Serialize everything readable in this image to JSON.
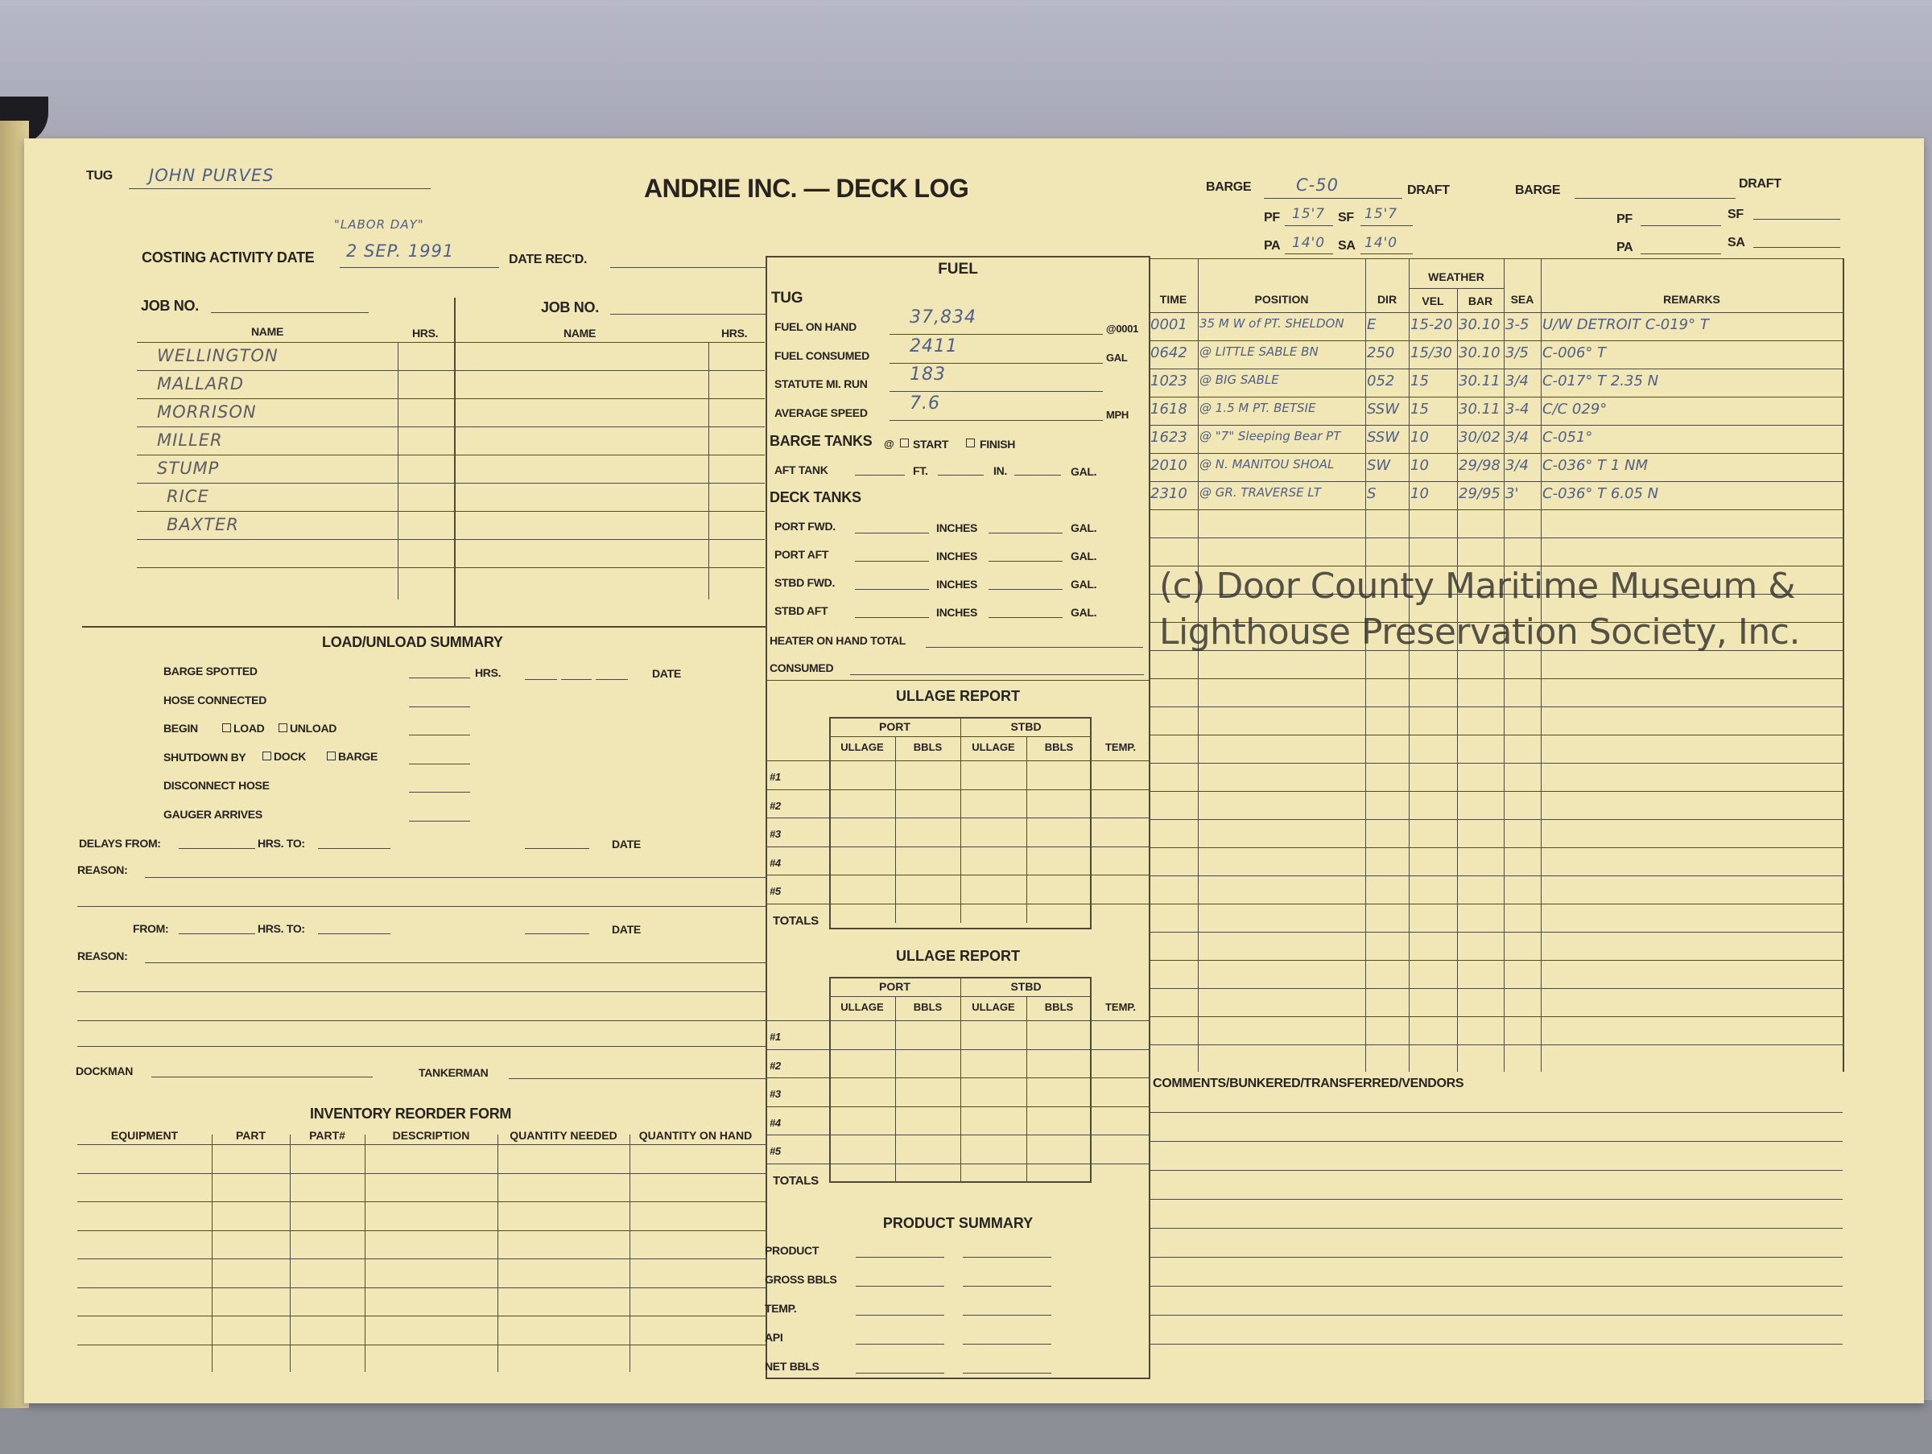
{
  "form": {
    "title": "ANDRIE INC. — DECK LOG",
    "watermark": "(c) Door County Maritime Museum & Lighthouse Preservation Society, Inc."
  },
  "header": {
    "tug_label": "TUG",
    "tug_value": "JOHN PURVES",
    "costing_label": "COSTING ACTIVITY DATE",
    "costing_note": "\"LABOR DAY\"",
    "costing_value": "2 SEP. 1991",
    "date_recd_label": "DATE REC'D.",
    "barge1": {
      "barge_label": "BARGE",
      "barge_value": "C-50",
      "draft_label": "DRAFT",
      "pf_label": "PF",
      "pf": "15'7",
      "sf_label": "SF",
      "sf": "15'7",
      "pa_label": "PA",
      "pa": "14'0",
      "sa_label": "SA",
      "sa": "14'0"
    },
    "barge2": {
      "barge_label": "BARGE",
      "draft_label": "DRAFT",
      "pf_label": "PF",
      "sf_label": "SF",
      "pa_label": "PA",
      "sa_label": "SA"
    }
  },
  "crew": {
    "job_label": "JOB NO.",
    "name_header": "NAME",
    "hrs_header": "HRS.",
    "names": [
      "WELLINGTON",
      "MALLARD",
      "MORRISON",
      "MILLER",
      "STUMP",
      "RICE",
      "BAXTER"
    ]
  },
  "load_unload": {
    "title": "LOAD/UNLOAD SUMMARY",
    "barge_spotted": "BARGE SPOTTED",
    "hrs": "HRS.",
    "date": "DATE",
    "hose_connected": "HOSE CONNECTED",
    "begin": "BEGIN",
    "load": "LOAD",
    "unload": "UNLOAD",
    "shutdown_by": "SHUTDOWN BY",
    "dock": "DOCK",
    "barge": "BARGE",
    "disconnect_hose": "DISCONNECT HOSE",
    "gauger_arrives": "GAUGER ARRIVES",
    "delays_from": "DELAYS FROM:",
    "hrs_to": "HRS. TO:",
    "reason": "REASON:",
    "from": "FROM:",
    "dockman": "DOCKMAN",
    "tankerman": "TANKERMAN"
  },
  "inventory": {
    "title": "INVENTORY REORDER FORM",
    "columns": [
      "EQUIPMENT",
      "PART",
      "PART#",
      "DESCRIPTION",
      "QUANTITY NEEDED",
      "QUANTITY ON HAND"
    ]
  },
  "fuel": {
    "title": "FUEL",
    "tug": "TUG",
    "fuel_on_hand_label": "FUEL ON HAND",
    "fuel_on_hand": "37,834",
    "fuel_on_hand_unit": "@0001",
    "fuel_consumed_label": "FUEL CONSUMED",
    "fuel_consumed": "2411",
    "fuel_consumed_unit": "GAL",
    "statute_label": "STATUTE MI. RUN",
    "statute": "183",
    "avg_speed_label": "AVERAGE SPEED",
    "avg_speed": "7.6",
    "avg_speed_unit": "MPH",
    "barge_tanks": "BARGE TANKS",
    "at": "@",
    "start": "START",
    "finish": "FINISH",
    "aft_tank": "AFT TANK",
    "ft": "FT.",
    "in": "IN.",
    "gal": "GAL.",
    "deck_tanks": "DECK TANKS",
    "inches": "INCHES",
    "deck_rows": [
      "PORT FWD.",
      "PORT AFT",
      "STBD FWD.",
      "STBD AFT"
    ],
    "heater": "HEATER ON HAND TOTAL",
    "consumed": "CONSUMED"
  },
  "ullage": {
    "title": "ULLAGE REPORT",
    "port": "PORT",
    "stbd": "STBD",
    "cols": [
      "ULLAGE",
      "BBLS",
      "ULLAGE",
      "BBLS",
      "TEMP."
    ],
    "rows": [
      "#1",
      "#2",
      "#3",
      "#4",
      "#5",
      "TOTALS"
    ]
  },
  "product": {
    "title": "PRODUCT SUMMARY",
    "rows": [
      "PRODUCT",
      "GROSS BBLS",
      "TEMP.",
      "API",
      "NET BBLS"
    ]
  },
  "log": {
    "weather": "WEATHER",
    "columns": [
      "TIME",
      "POSITION",
      "DIR",
      "VEL",
      "BAR",
      "SEA",
      "REMARKS"
    ],
    "entries": [
      [
        "0001",
        "35 M W of PT. SHELDON",
        "E",
        "15-20",
        "30.10",
        "3-5",
        "U/W DETROIT    C-019° T"
      ],
      [
        "0642",
        "@ LITTLE SABLE BN",
        "250",
        "15/30",
        "30.10",
        "3/5",
        "C-006° T"
      ],
      [
        "1023",
        "@ BIG SABLE",
        "052",
        "15",
        "30.11",
        "3/4",
        "C-017° T    2.35 N"
      ],
      [
        "1618",
        "@ 1.5 M PT. BETSIE",
        "SSW",
        "15",
        "30.11",
        "3-4",
        "C/C 029°"
      ],
      [
        "1623",
        "@ \"7\" Sleeping Bear PT",
        "SSW",
        "10",
        "30/02",
        "3/4",
        "C-051°"
      ],
      [
        "2010",
        "@ N. MANITOU SHOAL",
        "SW",
        "10",
        "29/98",
        "3/4",
        "C-036° T  1 NM"
      ],
      [
        "2310",
        "@ GR. TRAVERSE LT",
        "S",
        "10",
        "29/95",
        "3'",
        "C-036° T    6.05 N"
      ]
    ]
  },
  "comments": {
    "title": "COMMENTS/BUNKERED/TRANSFERRED/VENDORS"
  }
}
